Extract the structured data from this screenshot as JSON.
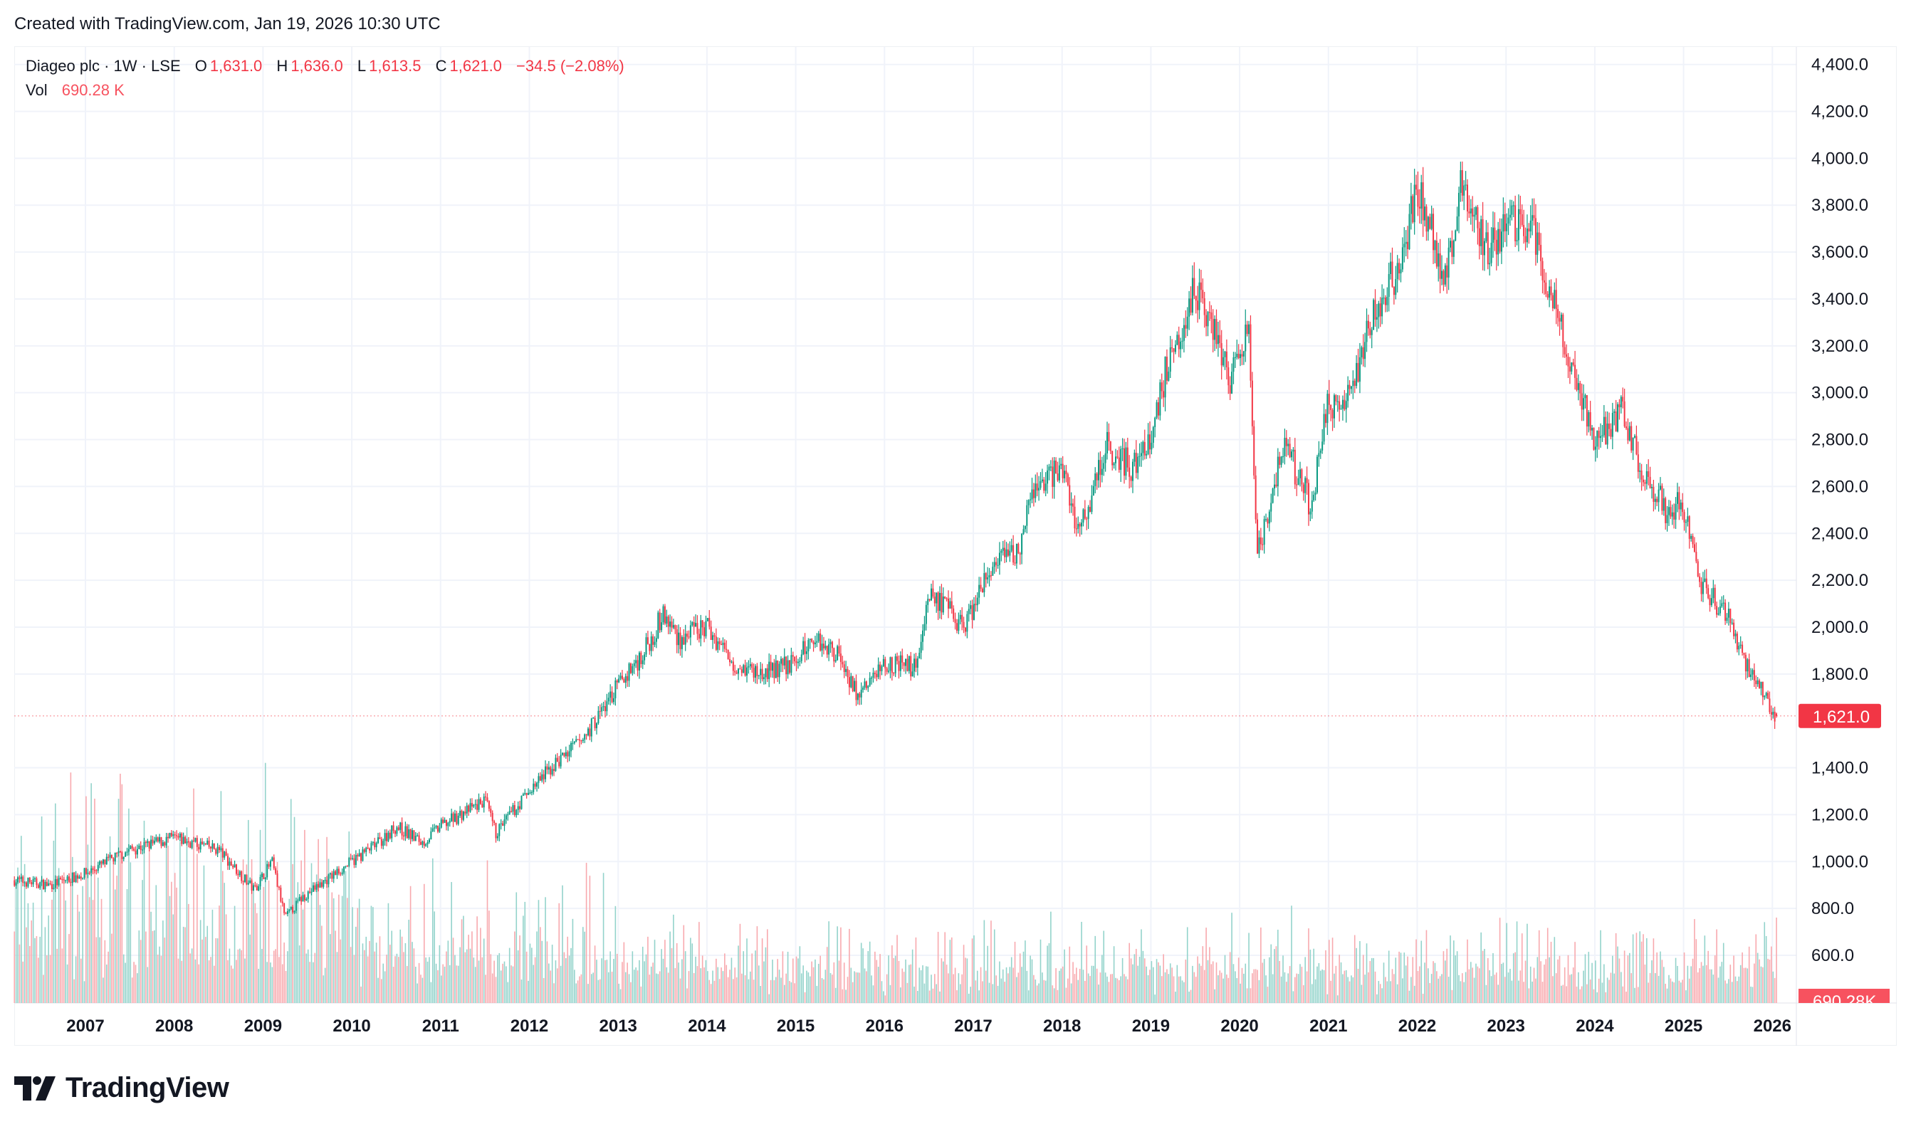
{
  "credit": "Created with TradingView.com, Jan 19, 2026 10:30 UTC",
  "legend": {
    "symbol": "Diageo plc · 1W · LSE",
    "o_label": "O",
    "open": "1,631.0",
    "h_label": "H",
    "high": "1,636.0",
    "l_label": "L",
    "low": "1,613.5",
    "c_label": "C",
    "close": "1,621.0",
    "change": "−34.5 (−2.08%)",
    "vol_label": "Vol",
    "volume": "690.28 K"
  },
  "logo": "TradingView",
  "colors": {
    "up": "#089981",
    "down": "#f23645",
    "vol_up": "#93d3cb",
    "vol_down": "#f8a9ae",
    "grid": "#f0f3fa",
    "text": "#131722"
  },
  "chart_data": {
    "type": "candlestick",
    "title": "Diageo plc · 1W · LSE",
    "interval": "1W",
    "last_price_label": "1,621.0",
    "last_volume_label": "690.28K",
    "ylim": [
      500,
      4450
    ],
    "y_ticks": [
      "4,400.0",
      "4,200.0",
      "4,000.0",
      "3,800.0",
      "3,600.0",
      "3,400.0",
      "3,200.0",
      "3,000.0",
      "2,800.0",
      "2,600.0",
      "2,400.0",
      "2,200.0",
      "2,000.0",
      "1,800.0",
      "1,400.0",
      "1,200.0",
      "1,000.0",
      "800.0",
      "600.0"
    ],
    "y_tick_values": [
      4400,
      4200,
      4000,
      3800,
      3600,
      3400,
      3200,
      3000,
      2800,
      2600,
      2400,
      2200,
      2000,
      1800,
      1400,
      1200,
      1000,
      800,
      600
    ],
    "x_ticks": [
      "2007",
      "2008",
      "2009",
      "2010",
      "2011",
      "2012",
      "2013",
      "2014",
      "2015",
      "2016",
      "2017",
      "2018",
      "2019",
      "2020",
      "2021",
      "2022",
      "2023",
      "2024",
      "2025",
      "2026"
    ],
    "price_path": [
      [
        2006.2,
        920
      ],
      [
        2006.6,
        900
      ],
      [
        2007.0,
        950
      ],
      [
        2007.5,
        1050
      ],
      [
        2008.0,
        1100
      ],
      [
        2008.5,
        1050
      ],
      [
        2008.9,
        880
      ],
      [
        2009.1,
        1000
      ],
      [
        2009.25,
        760
      ],
      [
        2009.45,
        850
      ],
      [
        2010.0,
        1000
      ],
      [
        2010.3,
        1080
      ],
      [
        2010.5,
        1150
      ],
      [
        2010.8,
        1080
      ],
      [
        2011.0,
        1150
      ],
      [
        2011.5,
        1260
      ],
      [
        2011.62,
        1120
      ],
      [
        2012.0,
        1300
      ],
      [
        2012.3,
        1420
      ],
      [
        2012.6,
        1520
      ],
      [
        2013.0,
        1750
      ],
      [
        2013.3,
        1900
      ],
      [
        2013.5,
        2050
      ],
      [
        2013.7,
        1950
      ],
      [
        2014.0,
        2000
      ],
      [
        2014.3,
        1850
      ],
      [
        2014.6,
        1800
      ],
      [
        2015.0,
        1850
      ],
      [
        2015.2,
        1960
      ],
      [
        2015.5,
        1880
      ],
      [
        2015.7,
        1700
      ],
      [
        2016.0,
        1850
      ],
      [
        2016.35,
        1830
      ],
      [
        2016.5,
        2150
      ],
      [
        2016.9,
        2000
      ],
      [
        2017.2,
        2250
      ],
      [
        2017.5,
        2320
      ],
      [
        2017.7,
        2600
      ],
      [
        2018.0,
        2680
      ],
      [
        2018.2,
        2400
      ],
      [
        2018.5,
        2780
      ],
      [
        2018.8,
        2680
      ],
      [
        2019.0,
        2800
      ],
      [
        2019.2,
        3150
      ],
      [
        2019.5,
        3450
      ],
      [
        2019.7,
        3300
      ],
      [
        2019.9,
        3050
      ],
      [
        2020.1,
        3250
      ],
      [
        2020.2,
        2300
      ],
      [
        2020.5,
        2780
      ],
      [
        2020.8,
        2520
      ],
      [
        2021.0,
        2950
      ],
      [
        2021.2,
        2950
      ],
      [
        2021.5,
        3320
      ],
      [
        2021.8,
        3550
      ],
      [
        2022.0,
        3850
      ],
      [
        2022.15,
        3750
      ],
      [
        2022.3,
        3450
      ],
      [
        2022.5,
        3880
      ],
      [
        2022.8,
        3620
      ],
      [
        2023.0,
        3720
      ],
      [
        2023.3,
        3700
      ],
      [
        2023.5,
        3420
      ],
      [
        2023.7,
        3150
      ],
      [
        2024.0,
        2800
      ],
      [
        2024.3,
        2920
      ],
      [
        2024.5,
        2700
      ],
      [
        2024.8,
        2500
      ],
      [
        2025.0,
        2520
      ],
      [
        2025.2,
        2180
      ],
      [
        2025.5,
        2050
      ],
      [
        2025.7,
        1850
      ],
      [
        2025.9,
        1720
      ],
      [
        2026.05,
        1621
      ]
    ],
    "last_bar": {
      "open": 1631.0,
      "high": 1636.0,
      "low": 1613.5,
      "close": 1621.0,
      "volume_k": 690.28
    }
  }
}
